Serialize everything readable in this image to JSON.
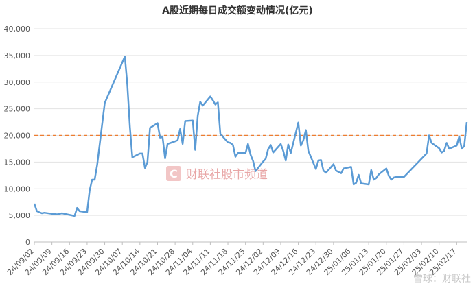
{
  "chart_data": {
    "type": "line",
    "title": "A股近期每日成交额变动情况(亿元)",
    "xlabel": "",
    "ylabel": "",
    "ylim": [
      0,
      40000
    ],
    "yticks": [
      0,
      5000,
      10000,
      15000,
      20000,
      25000,
      30000,
      35000,
      40000
    ],
    "ytick_labels": [
      "0",
      "5,000",
      "10,000",
      "15,000",
      "20,000",
      "25,000",
      "30,000",
      "35,000",
      "40,000"
    ],
    "x_tick_labels": [
      "24/09/02",
      "24/09/09",
      "24/09/16",
      "24/09/23",
      "24/09/30",
      "24/10/07",
      "24/10/14",
      "24/10/21",
      "24/10/28",
      "24/11/04",
      "24/11/11",
      "24/11/18",
      "24/11/25",
      "24/12/02",
      "24/12/09",
      "24/12/16",
      "24/12/23",
      "24/12/30",
      "25/01/06",
      "25/01/13",
      "25/01/20",
      "25/01/27",
      "25/02/03",
      "25/02/10",
      "25/02/17"
    ],
    "x_start": "24/09/02",
    "grid": "horizontal",
    "legend": "none",
    "series": [
      {
        "color": "#5b9bd5",
        "x": [
          "24/09/02",
          "24/09/03",
          "24/09/04",
          "24/09/05",
          "24/09/06",
          "24/09/09",
          "24/09/10",
          "24/09/11",
          "24/09/12",
          "24/09/13",
          "24/09/18",
          "24/09/19",
          "24/09/20",
          "24/09/23",
          "24/09/24",
          "24/09/25",
          "24/09/26",
          "24/09/27",
          "24/09/30",
          "24/10/08",
          "24/10/09",
          "24/10/10",
          "24/10/11",
          "24/10/14",
          "24/10/15",
          "24/10/16",
          "24/10/17",
          "24/10/18",
          "24/10/21",
          "24/10/22",
          "24/10/23",
          "24/10/24",
          "24/10/25",
          "24/10/28",
          "24/10/29",
          "24/10/30",
          "24/10/31",
          "24/11/01",
          "24/11/04",
          "24/11/05",
          "24/11/06",
          "24/11/07",
          "24/11/08",
          "24/11/11",
          "24/11/12",
          "24/11/13",
          "24/11/14",
          "24/11/15",
          "24/11/18",
          "24/11/19",
          "24/11/20",
          "24/11/21",
          "24/11/22",
          "24/11/25",
          "24/11/26",
          "24/11/27",
          "24/11/28",
          "24/11/29",
          "24/12/02",
          "24/12/03",
          "24/12/04",
          "24/12/05",
          "24/12/06",
          "24/12/09",
          "24/12/10",
          "24/12/11",
          "24/12/12",
          "24/12/13",
          "24/12/16",
          "24/12/17",
          "24/12/18",
          "24/12/19",
          "24/12/20",
          "24/12/23",
          "24/12/24",
          "24/12/25",
          "24/12/26",
          "24/12/27",
          "24/12/30",
          "24/12/31",
          "25/01/02",
          "25/01/03",
          "25/01/06",
          "25/01/07",
          "25/01/08",
          "25/01/09",
          "25/01/10",
          "25/01/13",
          "25/01/14",
          "25/01/15",
          "25/01/16",
          "25/01/17",
          "25/01/20",
          "25/01/21",
          "25/01/22",
          "25/01/23",
          "25/01/24",
          "25/01/27",
          "25/02/05",
          "25/02/06",
          "25/02/07",
          "25/02/10",
          "25/02/11",
          "25/02/12",
          "25/02/13",
          "25/02/14",
          "25/02/17",
          "25/02/18",
          "25/02/19",
          "25/02/20",
          "25/02/21"
        ],
        "values": [
          7200,
          5800,
          5600,
          5400,
          5500,
          5300,
          5300,
          5200,
          5300,
          5400,
          4900,
          6400,
          5800,
          5600,
          9700,
          11700,
          11700,
          14500,
          26100,
          34800,
          29500,
          21600,
          15900,
          16600,
          16600,
          13900,
          15000,
          21400,
          22300,
          19600,
          19700,
          15700,
          18400,
          18900,
          19100,
          21200,
          18400,
          22700,
          22800,
          17300,
          23700,
          26300,
          25600,
          27300,
          26600,
          25800,
          26200,
          20300,
          18700,
          18600,
          18200,
          16000,
          16700,
          16700,
          18400,
          16400,
          15200,
          13300,
          15100,
          15600,
          17400,
          18200,
          16800,
          18400,
          17100,
          15300,
          18300,
          16700,
          22400,
          18100,
          19100,
          21000,
          17100,
          13700,
          15300,
          15400,
          13400,
          13000,
          14600,
          13400,
          12900,
          13800,
          14100,
          10800,
          11100,
          12600,
          11000,
          10800,
          13500,
          11700,
          12000,
          12700,
          13800,
          12400,
          11700,
          12100,
          12200,
          12200,
          16600,
          20000,
          18600,
          17600,
          16800,
          17100,
          18600,
          17500,
          18100,
          19800,
          17500,
          18000,
          22500
        ]
      }
    ],
    "reference_line": {
      "value": 20000,
      "color": "#ed7d31",
      "style": "dashed"
    }
  },
  "watermark": {
    "logo_glyph": "C",
    "text": "财联社股市频道",
    "bottom_right_text": "雪球：财联社"
  }
}
